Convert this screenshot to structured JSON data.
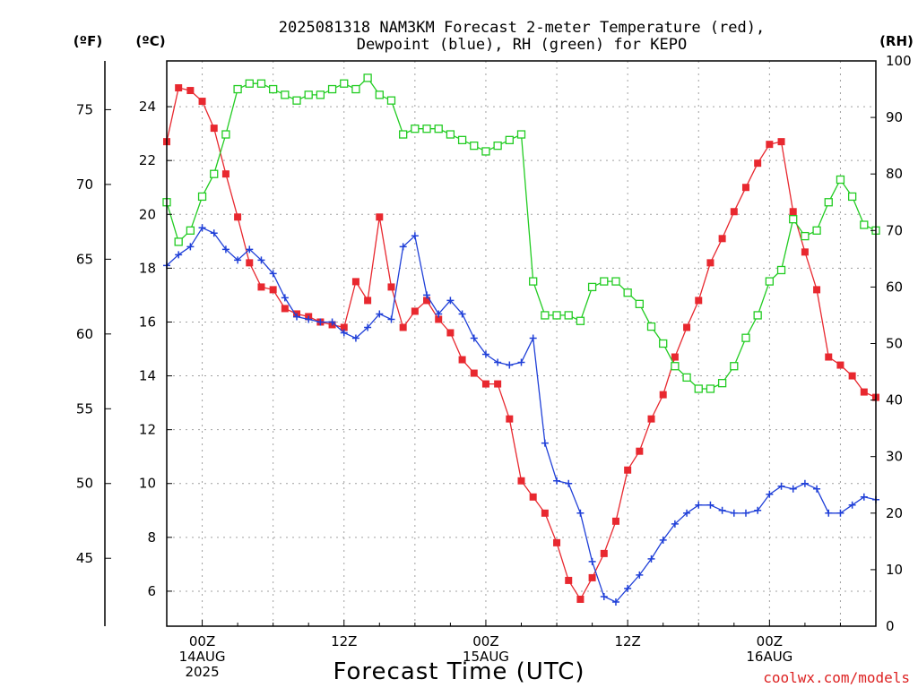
{
  "chart_data": {
    "type": "line",
    "title": [
      "2025081318 NAM3KM Forecast 2-meter Temperature (red),",
      "Dewpoint (blue), RH (green) for KEPO"
    ],
    "xlabel": "Forecast Time (UTC)",
    "credit": "coolwx.com/models",
    "axis_units": {
      "fahrenheit": "(ºF)",
      "celsius": "(ºC)",
      "rh": "(RH)"
    },
    "colors": {
      "temperature": "#e8282f",
      "dewpoint": "#2040d8",
      "rh": "#22cc22",
      "credit": "#dd2222",
      "grid": "#a0a0a0"
    },
    "x_range_hours": [
      -3,
      57
    ],
    "x_ticks": [
      {
        "hour": 0,
        "lines": [
          "00Z",
          "14AUG",
          "2025"
        ]
      },
      {
        "hour": 12,
        "lines": [
          "12Z"
        ]
      },
      {
        "hour": 24,
        "lines": [
          "00Z",
          "15AUG"
        ]
      },
      {
        "hour": 36,
        "lines": [
          "12Z"
        ]
      },
      {
        "hour": 48,
        "lines": [
          "00Z",
          "16AUG"
        ]
      }
    ],
    "y_celsius": {
      "range": [
        4.7,
        25.7
      ],
      "ticks": [
        6,
        8,
        10,
        12,
        14,
        16,
        18,
        20,
        22,
        24
      ]
    },
    "y_fahrenheit": {
      "ticks": [
        45,
        50,
        55,
        60,
        65,
        70,
        75
      ]
    },
    "y_rh": {
      "range": [
        0,
        100
      ],
      "ticks": [
        0,
        10,
        20,
        30,
        40,
        50,
        60,
        70,
        80,
        90,
        100
      ]
    },
    "grid": true,
    "series": [
      {
        "key": "temperature",
        "name": "2-meter Temperature",
        "marker": "filled-square",
        "axis": "celsius",
        "x": [
          -3,
          -2,
          -1,
          0,
          1,
          2,
          3,
          4,
          5,
          6,
          7,
          8,
          9,
          10,
          11,
          12,
          13,
          14,
          15,
          16,
          17,
          18,
          19,
          20,
          21,
          22,
          23,
          24,
          25,
          26,
          27,
          28,
          29,
          30,
          31,
          32,
          33,
          34,
          35,
          36,
          37,
          38,
          39,
          40,
          41,
          42,
          43,
          44,
          45,
          46,
          47,
          48,
          49,
          50,
          51,
          52,
          53,
          54,
          55,
          56,
          57
        ],
        "values": [
          22.7,
          24.7,
          24.6,
          24.2,
          23.2,
          21.5,
          19.9,
          18.2,
          17.3,
          17.2,
          16.5,
          16.3,
          16.2,
          16.0,
          15.9,
          15.8,
          17.5,
          16.8,
          19.9,
          17.3,
          15.8,
          16.4,
          16.8,
          16.1,
          15.6,
          14.6,
          14.1,
          13.7,
          13.7,
          12.4,
          10.1,
          9.5,
          8.9,
          7.8,
          6.4,
          5.7,
          6.5,
          7.4,
          8.6,
          10.5,
          11.2,
          12.4,
          13.3,
          14.7,
          15.8,
          16.8,
          18.2,
          19.1,
          20.1,
          21.0,
          21.9,
          22.6,
          22.7,
          20.1,
          18.6,
          17.2,
          14.7,
          14.4,
          14.0,
          13.4,
          13.2
        ]
      },
      {
        "key": "dewpoint",
        "name": "Dewpoint",
        "marker": "plus",
        "axis": "celsius",
        "x": [
          -3,
          -2,
          -1,
          0,
          1,
          2,
          3,
          4,
          5,
          6,
          7,
          8,
          9,
          10,
          11,
          12,
          13,
          14,
          15,
          16,
          17,
          18,
          19,
          20,
          21,
          22,
          23,
          24,
          25,
          26,
          27,
          28,
          29,
          30,
          31,
          32,
          33,
          34,
          35,
          36,
          37,
          38,
          39,
          40,
          41,
          42,
          43,
          44,
          45,
          46,
          47,
          48,
          49,
          50,
          51,
          52,
          53,
          54,
          55,
          56,
          57
        ],
        "values": [
          18.1,
          18.5,
          18.8,
          19.5,
          19.3,
          18.7,
          18.3,
          18.7,
          18.3,
          17.8,
          16.9,
          16.2,
          16.1,
          16.0,
          16.0,
          15.6,
          15.4,
          15.8,
          16.3,
          16.1,
          18.8,
          19.2,
          17.0,
          16.3,
          16.8,
          16.3,
          15.4,
          14.8,
          14.5,
          14.4,
          14.5,
          15.4,
          11.5,
          10.1,
          10.0,
          8.9,
          7.1,
          5.8,
          5.6,
          6.1,
          6.6,
          7.2,
          7.9,
          8.5,
          8.9,
          9.2,
          9.2,
          9.0,
          8.9,
          8.9,
          9.0,
          9.6,
          9.9,
          9.8,
          10.0,
          9.8,
          8.9,
          8.9,
          9.2,
          9.5,
          9.4
        ]
      },
      {
        "key": "rh",
        "name": "RH",
        "marker": "open-square",
        "axis": "rh",
        "x": [
          -3,
          -2,
          -1,
          0,
          1,
          2,
          3,
          4,
          5,
          6,
          7,
          8,
          9,
          10,
          11,
          12,
          13,
          14,
          15,
          16,
          17,
          18,
          19,
          20,
          21,
          22,
          23,
          24,
          25,
          26,
          27,
          28,
          29,
          30,
          31,
          32,
          33,
          34,
          35,
          36,
          37,
          38,
          39,
          40,
          41,
          42,
          43,
          44,
          45,
          46,
          47,
          48,
          49,
          50,
          51,
          52,
          53,
          54,
          55,
          56,
          57
        ],
        "values": [
          75,
          68,
          70,
          76,
          80,
          87,
          95,
          96,
          96,
          95,
          94,
          93,
          94,
          94,
          95,
          96,
          95,
          97,
          94,
          93,
          87,
          88,
          88,
          88,
          87,
          86,
          85,
          84,
          85,
          86,
          87,
          61,
          55,
          55,
          55,
          54,
          60,
          61,
          61,
          59,
          57,
          53,
          50,
          46,
          44,
          42,
          42,
          43,
          46,
          51,
          55,
          61,
          63,
          72,
          69,
          70,
          75,
          79,
          76,
          71,
          70
        ]
      }
    ]
  }
}
